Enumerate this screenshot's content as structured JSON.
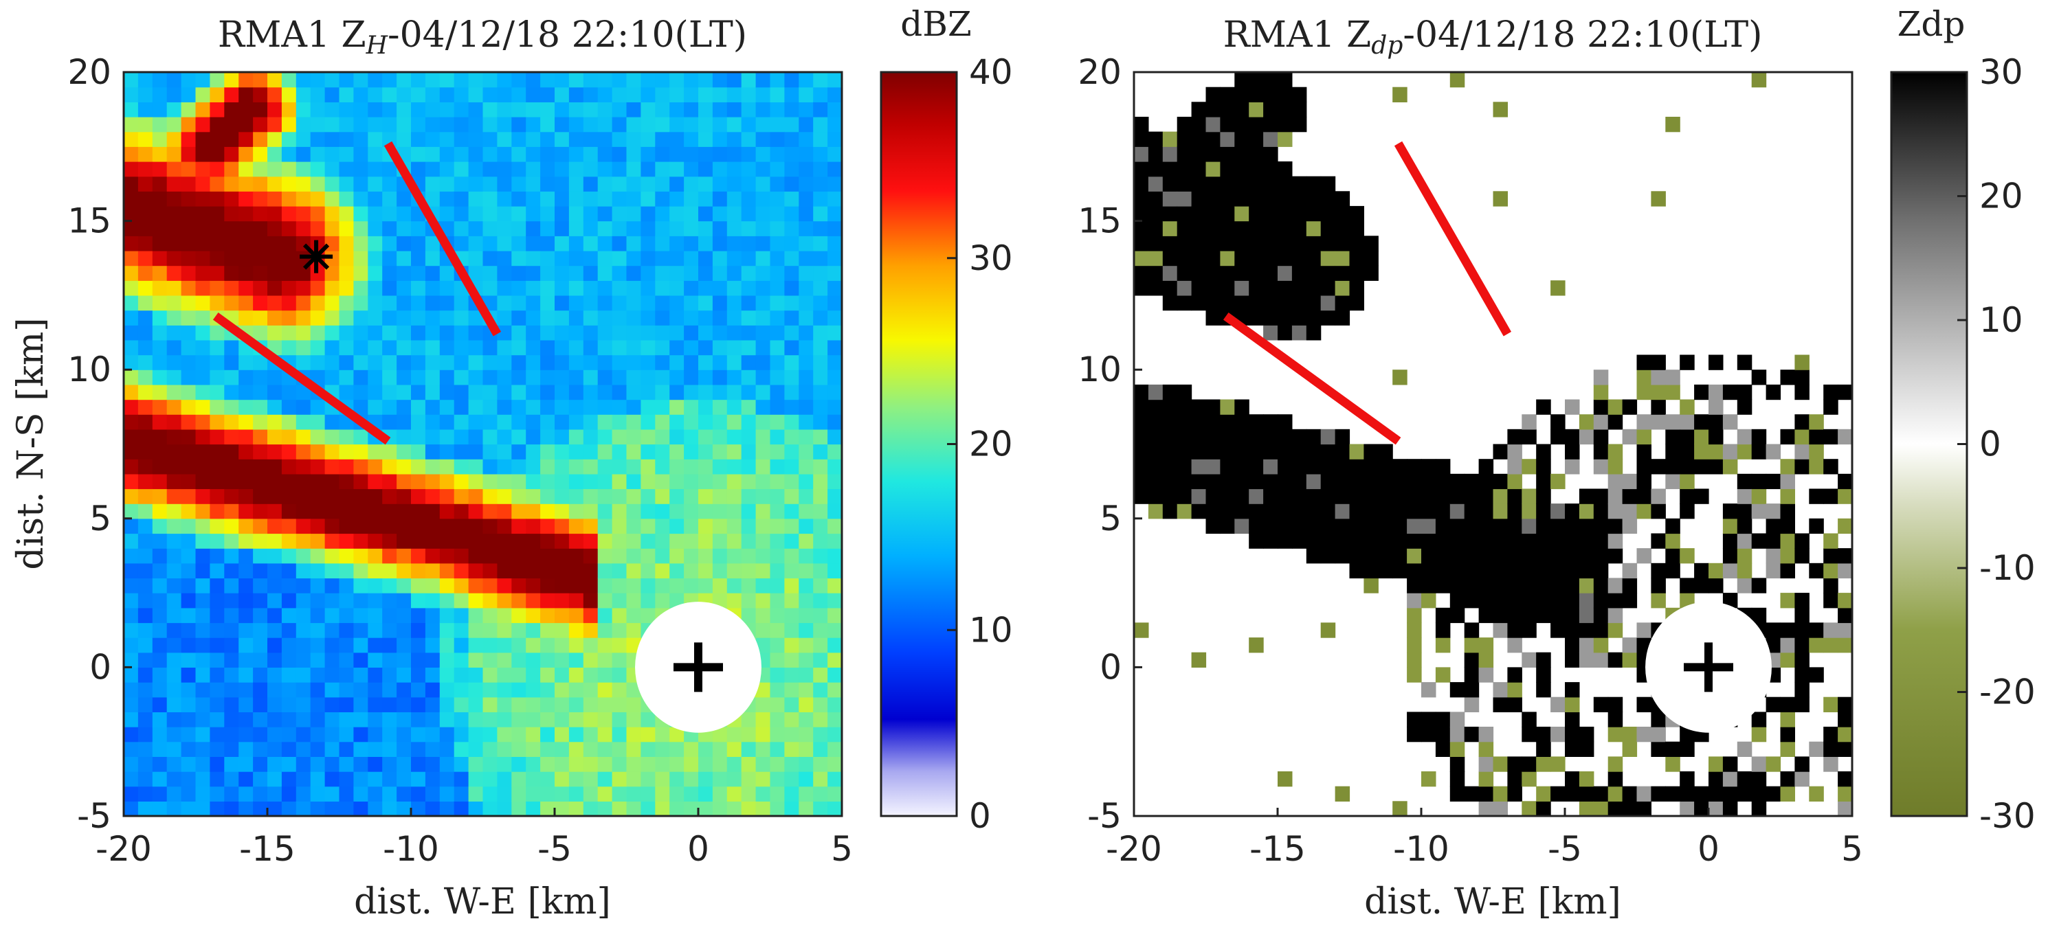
{
  "chart_data": [
    {
      "type": "heatmap",
      "panel": "left",
      "title": {
        "prefix": "RMA1 Z",
        "sub": "H",
        "suffix": "-04/12/18 22:10(LT)"
      },
      "xlabel": "dist. W-E [km]",
      "ylabel": "dist. N-S [km]",
      "xlim": [
        -20,
        5
      ],
      "ylim": [
        -5,
        20
      ],
      "xticks": [
        -20,
        -15,
        -10,
        -5,
        0,
        5
      ],
      "yticks": [
        -5,
        0,
        5,
        10,
        15,
        20
      ],
      "colorbar": {
        "title": "dBZ",
        "range": [
          0,
          40
        ],
        "ticks": [
          0,
          10,
          20,
          30,
          40
        ],
        "colormap": "jet"
      },
      "radar_site": {
        "x": 0,
        "y": 0,
        "blank_radius_km": 2.2,
        "marker": "plus"
      },
      "feature_marker": {
        "x": -13.3,
        "y": 13.8,
        "marker": "asterisk"
      },
      "red_lines": [
        {
          "x": [
            -10.8,
            -7.0
          ],
          "y": [
            17.6,
            11.2
          ]
        },
        {
          "x": [
            -16.8,
            -10.8
          ],
          "y": [
            11.8,
            7.6
          ]
        }
      ],
      "echo_bands": [
        {
          "name": "upper cell",
          "x": [
            -20,
            -13.5
          ],
          "y": [
            11.5,
            18.5
          ],
          "peak_dbz": 40
        },
        {
          "name": "lower band",
          "x": [
            -20,
            -3.5
          ],
          "y": [
            3,
            9
          ],
          "peak_dbz": 40
        }
      ],
      "colors": {
        "line": "#ee1111"
      }
    },
    {
      "type": "heatmap",
      "panel": "right",
      "title": {
        "prefix": "RMA1 Z",
        "sub": "dp",
        "suffix": "-04/12/18 22:10(LT)"
      },
      "xlabel": "dist. W-E [km]",
      "ylabel": "",
      "xlim": [
        -20,
        5
      ],
      "ylim": [
        -5,
        20
      ],
      "xticks": [
        -20,
        -15,
        -10,
        -5,
        0,
        5
      ],
      "yticks": [
        -5,
        0,
        5,
        10,
        15,
        20
      ],
      "colorbar": {
        "title": "Zdp",
        "range": [
          -30,
          30
        ],
        "ticks": [
          -30,
          -20,
          -10,
          0,
          10,
          20,
          30
        ],
        "colormap": "olive-white-black"
      },
      "radar_site": {
        "x": 0,
        "y": 0,
        "blank_radius_km": 2.2,
        "marker": "plus"
      },
      "red_lines": [
        {
          "x": [
            -10.8,
            -7.0
          ],
          "y": [
            17.6,
            11.2
          ]
        },
        {
          "x": [
            -16.8,
            -10.8
          ],
          "y": [
            11.8,
            7.6
          ]
        }
      ],
      "colors": {
        "line": "#ee1111"
      }
    }
  ]
}
